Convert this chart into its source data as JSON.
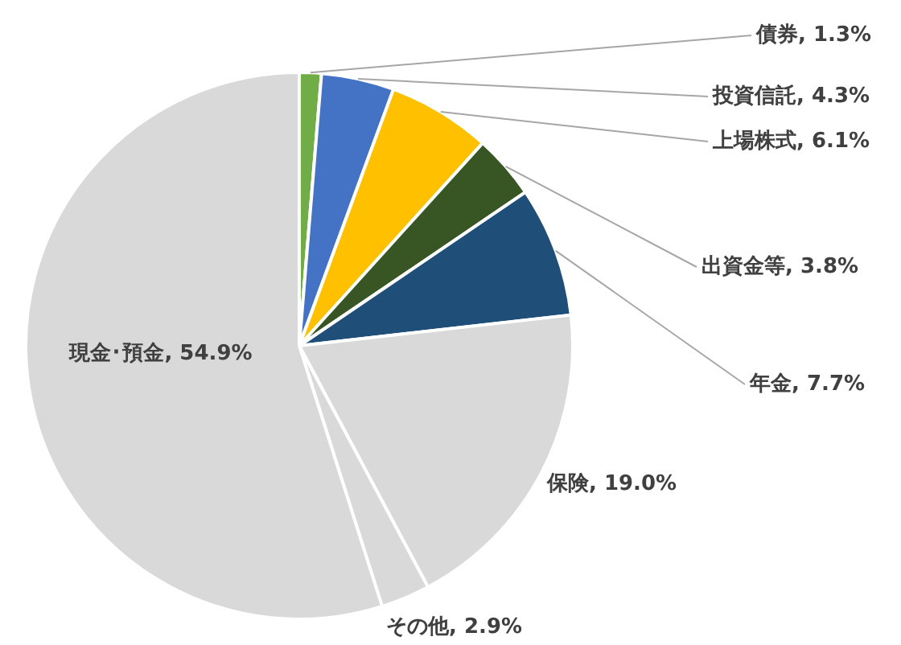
{
  "chart_data": {
    "type": "pie",
    "categories": [
      "債券",
      "投資信託",
      "上場株式",
      "出資金等",
      "年金",
      "保険",
      "その他",
      "現金･預金"
    ],
    "values": [
      1.3,
      4.3,
      6.1,
      3.8,
      7.7,
      19.0,
      2.9,
      54.9
    ],
    "value_labels": [
      "1.3%",
      "4.3%",
      "6.1%",
      "3.8%",
      "7.7%",
      "19.0%",
      "2.9%",
      "54.9%"
    ],
    "colors": [
      "#70ad47",
      "#4472c4",
      "#ffc000",
      "#375623",
      "#1f4e79",
      "#d9d9d9",
      "#d9d9d9",
      "#d9d9d9"
    ],
    "legend": false
  }
}
